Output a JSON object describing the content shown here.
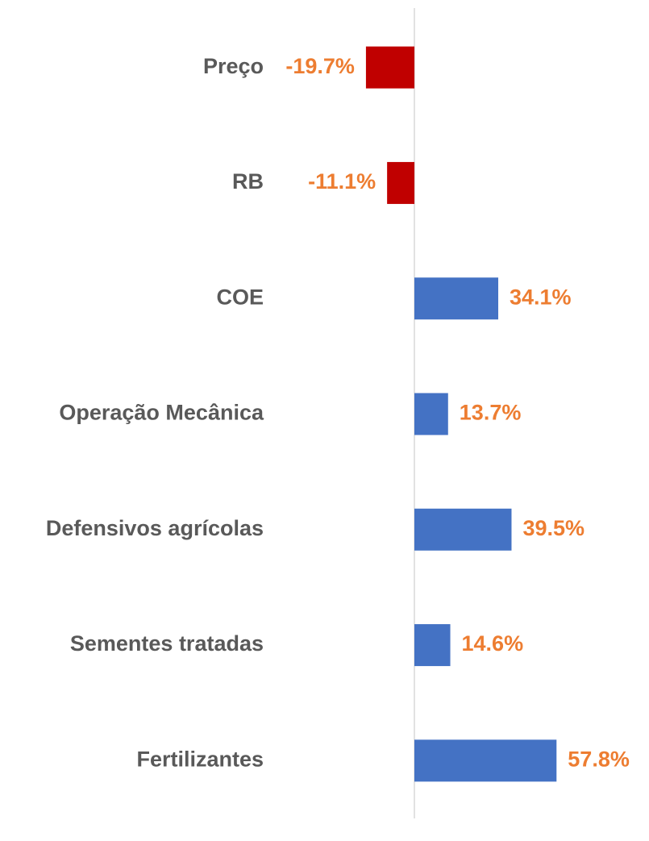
{
  "chart_data": {
    "type": "hbar",
    "categories": [
      "Preço",
      "RB",
      "COE",
      "Operação Mecânica",
      "Defensivos agrícolas",
      "Sementes tratadas",
      "Fertilizantes"
    ],
    "values": [
      -19.7,
      -11.1,
      34.1,
      13.7,
      39.5,
      14.6,
      57.8
    ],
    "value_labels": [
      "-19.7%",
      "-11.1%",
      "34.1%",
      "13.7%",
      "39.5%",
      "14.6%",
      "57.8%"
    ],
    "colors": [
      "#c00000",
      "#c00000",
      "#4472c4",
      "#4472c4",
      "#4472c4",
      "#4472c4",
      "#4472c4"
    ],
    "label_color": "#ed7d31",
    "xlim": [
      -20,
      60
    ]
  }
}
